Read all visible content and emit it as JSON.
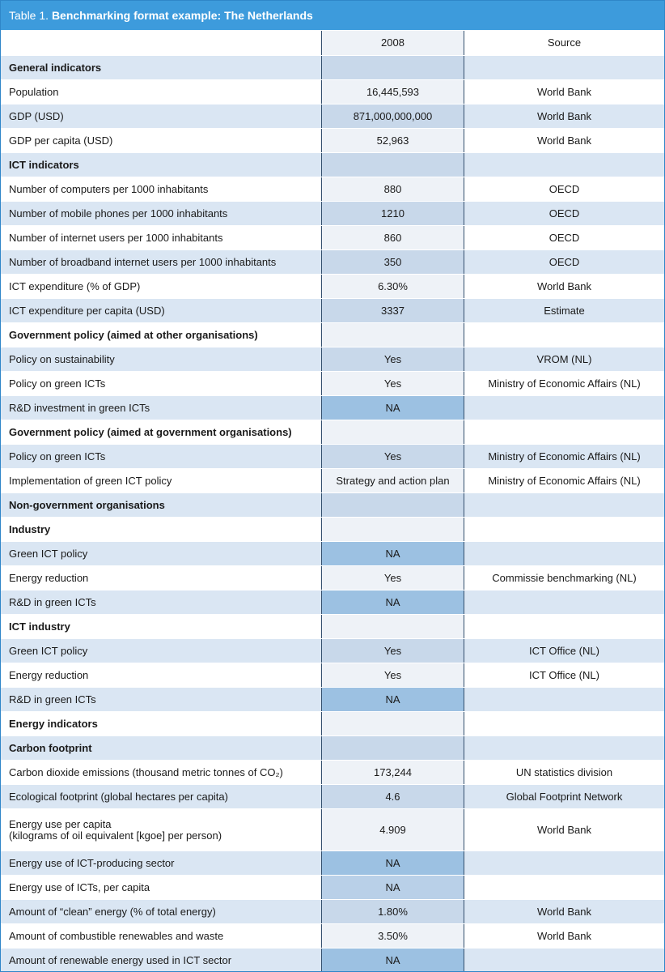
{
  "title": {
    "label": "Table 1.",
    "text": "Benchmarking format example: The Netherlands"
  },
  "header": [
    "2008",
    "Source"
  ],
  "rows": [
    {
      "label": "General indicators"
    },
    {
      "label": "Population",
      "value": "16,445,593",
      "source": "World Bank"
    },
    {
      "label": "GDP (USD)",
      "value": "871,000,000,000",
      "source": "World Bank"
    },
    {
      "label": "GDP per capita (USD)",
      "value": "52,963",
      "source": "World Bank"
    },
    {
      "label": "ICT indicators"
    },
    {
      "label": "Number of computers per 1000 inhabitants",
      "value": "880",
      "source": "OECD"
    },
    {
      "label": "Number of mobile phones per 1000 inhabitants",
      "value": "1210",
      "source": "OECD"
    },
    {
      "label": "Number of internet users per 1000 inhabitants",
      "value": "860",
      "source": "OECD"
    },
    {
      "label": "Number of broadband internet users per 1000 inhabitants",
      "value": "350",
      "source": "OECD"
    },
    {
      "label": "ICT expenditure (% of GDP)",
      "value": "6.30%",
      "source": "World Bank"
    },
    {
      "label": "ICT expenditure per capita (USD)",
      "value": "3337",
      "source": "Estimate"
    },
    {
      "label": "Government policy (aimed at other organisations)"
    },
    {
      "label": "Policy on sustainability",
      "value": "Yes",
      "source": "VROM (NL)"
    },
    {
      "label": "Policy on green ICTs",
      "value": "Yes",
      "source": "Ministry of Economic Affairs (NL)"
    },
    {
      "label": "R&D investment in green ICTs",
      "value": "NA"
    },
    {
      "label": "Government policy (aimed at government organisations)"
    },
    {
      "label": "Policy on green ICTs",
      "value": "Yes",
      "source": "Ministry of Economic Affairs (NL)"
    },
    {
      "label": "Implementation of green ICT policy",
      "value": "Strategy and action plan",
      "source": "Ministry of Economic Affairs (NL)"
    },
    {
      "label": "Non-government organisations"
    },
    {
      "label": "Industry"
    },
    {
      "label": "Green ICT policy",
      "value": "NA"
    },
    {
      "label": "Energy reduction",
      "value": "Yes",
      "source": "Commissie benchmarking (NL)"
    },
    {
      "label": "R&D in green ICTs",
      "value": "NA"
    },
    {
      "label": "ICT industry"
    },
    {
      "label": "Green ICT policy",
      "value": "Yes",
      "source": "ICT Office (NL)"
    },
    {
      "label": "Energy reduction",
      "value": "Yes",
      "source": "ICT Office (NL)"
    },
    {
      "label": "R&D in green ICTs",
      "value": "NA"
    },
    {
      "label": "Energy indicators"
    },
    {
      "label": "Carbon footprint"
    },
    {
      "label": "Carbon dioxide emissions (thousand metric tonnes of CO₂)",
      "value": "173,244",
      "source": "UN statistics division"
    },
    {
      "label": "Ecological footprint (global hectares per capita)",
      "value": "4.6",
      "source": "Global Footprint Network"
    },
    {
      "label": "Energy use per capita\n(kilograms of oil equivalent [kgoe] per person)",
      "value": "4.909",
      "source": "World Bank"
    },
    {
      "label": "Energy use of ICT-producing sector",
      "value": "NA"
    },
    {
      "label": "Energy use of ICTs, per capita",
      "value": "NA"
    },
    {
      "label": "Amount of “clean” energy (% of total energy)",
      "value": "1.80%",
      "source": "World Bank"
    },
    {
      "label": "Amount of combustible renewables and waste",
      "value": "3.50%",
      "source": "World Bank"
    },
    {
      "label": "Amount of renewable energy used in ICT sector",
      "value": "NA"
    }
  ]
}
